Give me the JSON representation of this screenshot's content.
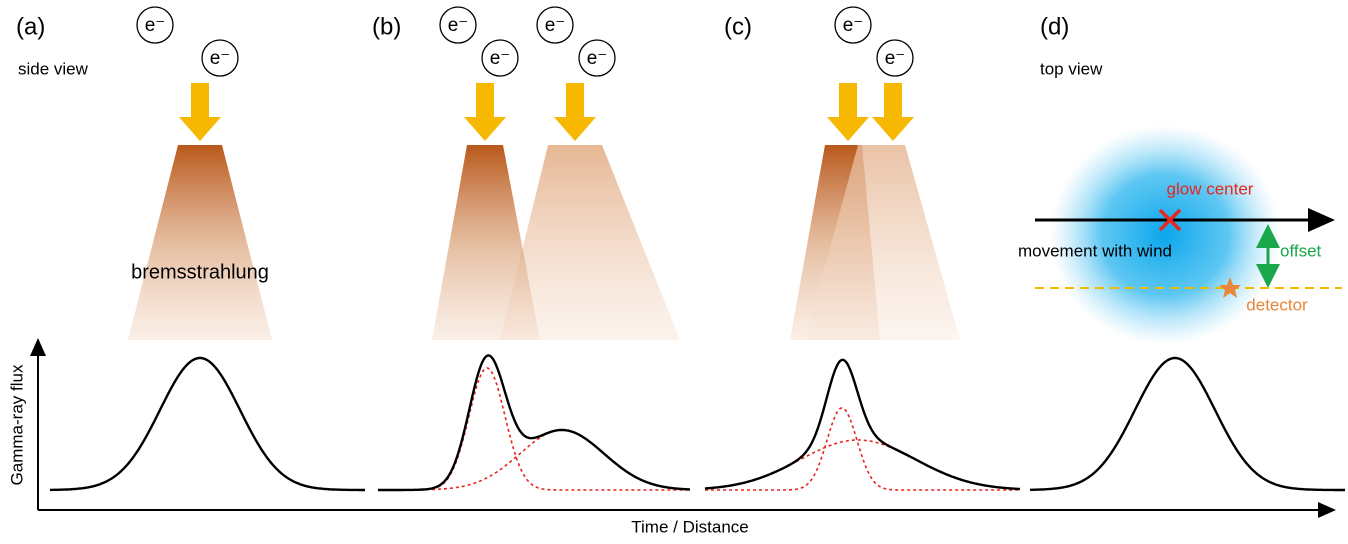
{
  "panels": [
    {
      "label": "(a)",
      "view": "side view",
      "electrons": [
        "e⁻",
        "e⁻"
      ],
      "beam_label": "bremsstrahlung"
    },
    {
      "label": "(b)",
      "electrons": [
        "e⁻",
        "e⁻",
        "e⁻",
        "e⁻"
      ]
    },
    {
      "label": "(c)",
      "electrons": [
        "e⁻",
        "e⁻"
      ]
    },
    {
      "label": "(d)",
      "view": "top view",
      "glow_center": "glow center",
      "movement": "movement with wind",
      "offset": "offset",
      "detector": "detector"
    }
  ],
  "axes": {
    "y_label": "Gamma-ray flux",
    "x_label": "Time / Distance"
  }
}
